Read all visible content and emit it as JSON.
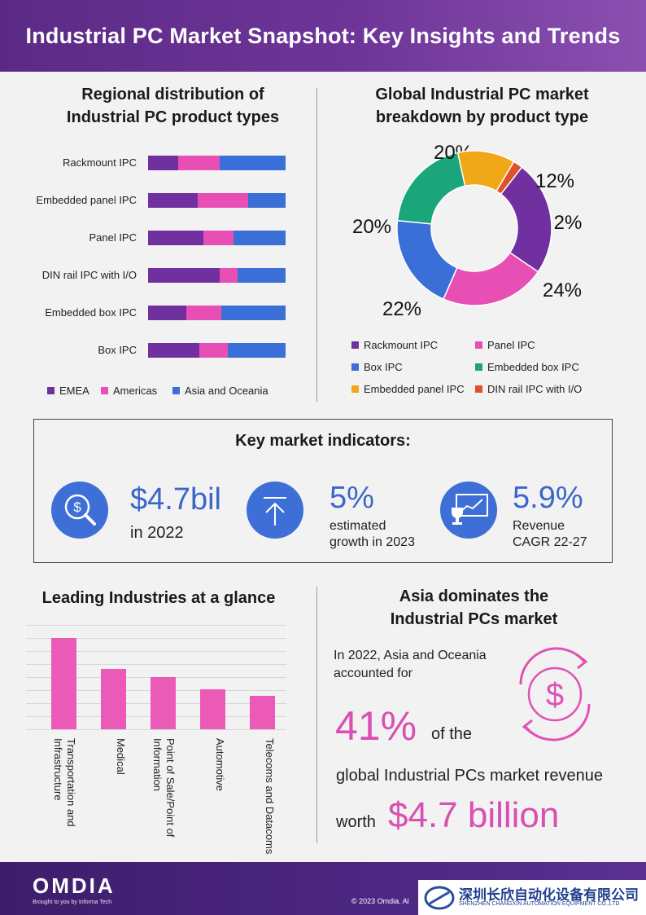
{
  "header": {
    "title": "Industrial PC Market Snapshot: Key Insights and Trends"
  },
  "regional": {
    "title_line1": "Regional distribution of",
    "title_line2": "Industrial PC product types"
  },
  "donut": {
    "title_line1": "Global Industrial PC market",
    "title_line2": "breakdown by product type"
  },
  "indicators": {
    "title": "Key market indicators:",
    "items": [
      {
        "value": "$4.7bil",
        "line1": "in 2022",
        "line2": "",
        "icon": "money-search-icon"
      },
      {
        "value": "5%",
        "line1": "estimated",
        "line2": "growth in 2023",
        "icon": "upload-arrow-icon"
      },
      {
        "value": "5.9%",
        "line1": "Revenue",
        "line2": "CAGR 22-27",
        "icon": "trophy-presentation-icon"
      }
    ]
  },
  "industries": {
    "title": "Leading Industries at a glance"
  },
  "asia": {
    "title_line1": "Asia dominates the",
    "title_line2": "Industrial PCs market",
    "text1_line1": "In 2022, Asia and Oceania",
    "text1_line2": "accounted for",
    "big_pct": "41%",
    "of_the": "of the",
    "text2": "global Industrial PCs market revenue",
    "worth": "worth",
    "big_value": "$4.7 billion",
    "icon": "dollar-cycle-icon"
  },
  "footer": {
    "logo": "OMDIA",
    "tagline": "Brought to you by Informa Tech",
    "copyright": "© 2023 Omdia. Al",
    "watermark_cn": "深圳长欣自动化设备有限公司",
    "watermark_en": "SHENZHEN CHANGXIN AUTOMATION EQUIPMENT CO.,LTD"
  },
  "colors": {
    "emea": "#7030a0",
    "americas": "#e84fb4",
    "asia_oceania": "#3a6fd8",
    "embedded_panel": "#f0a818",
    "din_rail": "#e0502a",
    "embedded_box": "#1aa57a",
    "pink": "#ec5ab7"
  },
  "chart_data": [
    {
      "type": "bar",
      "orientation": "horizontal-stacked-100",
      "categories": [
        "Rackmount IPC",
        "Embedded panel IPC",
        "Panel IPC",
        "DIN rail IPC with I/O",
        "Embedded box IPC",
        "Box IPC"
      ],
      "series": [
        {
          "name": "EMEA",
          "values": [
            22,
            36,
            40,
            52,
            28,
            37
          ]
        },
        {
          "name": "Americas",
          "values": [
            30,
            37,
            22,
            13,
            25,
            21
          ]
        },
        {
          "name": "Asia and Oceania",
          "values": [
            48,
            27,
            38,
            35,
            47,
            42
          ]
        }
      ],
      "legend": "bottom"
    },
    {
      "type": "pie",
      "donut": true,
      "labels": [
        "Rackmount IPC",
        "Panel IPC",
        "Box IPC",
        "Embedded box IPC",
        "Embedded panel IPC",
        "DIN rail IPC with I/O"
      ],
      "values": [
        24,
        22,
        20,
        20,
        12,
        2
      ],
      "value_labels": [
        "24%",
        "22%",
        "20%",
        "20%",
        "12%",
        "2%"
      ],
      "legend": "bottom"
    },
    {
      "type": "bar",
      "categories": [
        "Transportation and Infrastructure",
        "Medical",
        "Point of Sale/Point of Information",
        "Automotive",
        "Telecoms and Datacoms"
      ],
      "values": [
        100,
        66,
        57,
        44,
        37
      ],
      "grid": true
    }
  ]
}
